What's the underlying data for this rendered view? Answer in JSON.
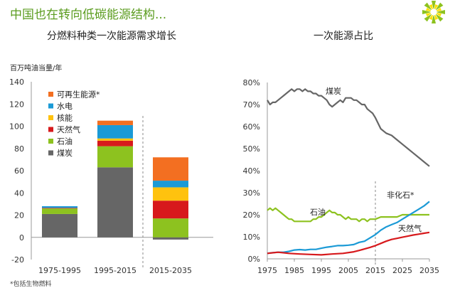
{
  "slide": {
    "title": "中国也在转向低碳能源结构...",
    "footnote": "*包括生物燃料",
    "accent_color": "#5b9c1f",
    "logo": "bp-helios-logo"
  },
  "chart_data": [
    {
      "type": "bar",
      "stacked": true,
      "title": "分燃料种类一次能源需求增长",
      "ylabel": "百万吨油当量/年",
      "ylim": [
        -20,
        140
      ],
      "yticks": [
        -20,
        0,
        20,
        40,
        60,
        80,
        100,
        120,
        140
      ],
      "categories": [
        "1975-1995",
        "1995-2015",
        "2015-2035"
      ],
      "legend_position": "top-right",
      "series": [
        {
          "name": "煤炭",
          "color": "#666666",
          "values": [
            21,
            63,
            -2
          ]
        },
        {
          "name": "石油",
          "color": "#8dc21f",
          "values": [
            5,
            19,
            17
          ]
        },
        {
          "name": "天然气",
          "color": "#d7191c",
          "values": [
            0.5,
            5,
            16
          ]
        },
        {
          "name": "核能",
          "color": "#ffc20e",
          "values": [
            0,
            2,
            12
          ]
        },
        {
          "name": "水电",
          "color": "#1b9ad6",
          "values": [
            1.5,
            12,
            6
          ]
        },
        {
          "name": "可再生能源*",
          "color": "#f36f21",
          "values": [
            0,
            4,
            21
          ]
        }
      ],
      "divider_between": [
        "1995-2015",
        "2015-2035"
      ]
    },
    {
      "type": "line",
      "title": "一次能源占比",
      "xlim": [
        1975,
        2035
      ],
      "xticks": [
        1975,
        1985,
        1995,
        2005,
        2015,
        2025,
        2035
      ],
      "ylim": [
        0,
        80
      ],
      "yticks": [
        "0%",
        "10%",
        "20%",
        "30%",
        "40%",
        "50%",
        "60%",
        "70%",
        "80%"
      ],
      "divider_at": 2015,
      "series": [
        {
          "name": "煤炭",
          "color": "#666666",
          "x": [
            1975,
            1976,
            1977,
            1978,
            1979,
            1980,
            1981,
            1982,
            1983,
            1984,
            1985,
            1986,
            1987,
            1988,
            1989,
            1990,
            1991,
            1992,
            1993,
            1994,
            1995,
            1996,
            1997,
            1998,
            1999,
            2000,
            2001,
            2002,
            2003,
            2004,
            2005,
            2006,
            2007,
            2008,
            2009,
            2010,
            2011,
            2012,
            2013,
            2014,
            2015,
            2017,
            2019,
            2021,
            2023,
            2025,
            2027,
            2029,
            2031,
            2033,
            2035
          ],
          "y": [
            72,
            70,
            71,
            71,
            72,
            73,
            74,
            75,
            76,
            77,
            76,
            77,
            77,
            76,
            77,
            76,
            76,
            75,
            75,
            74,
            74,
            73,
            72,
            70,
            69,
            70,
            71,
            72,
            71,
            73,
            73,
            73,
            72,
            72,
            71,
            70,
            70,
            68,
            67,
            66,
            64,
            59,
            57,
            56,
            54,
            52,
            50,
            48,
            46,
            44,
            42
          ]
        },
        {
          "name": "石油",
          "color": "#8dc21f",
          "x": [
            1975,
            1976,
            1977,
            1978,
            1979,
            1980,
            1981,
            1982,
            1983,
            1984,
            1985,
            1986,
            1987,
            1988,
            1989,
            1990,
            1991,
            1992,
            1993,
            1994,
            1995,
            1996,
            1997,
            1998,
            1999,
            2000,
            2001,
            2002,
            2003,
            2004,
            2005,
            2006,
            2007,
            2008,
            2009,
            2010,
            2011,
            2012,
            2013,
            2014,
            2015,
            2017,
            2019,
            2021,
            2023,
            2025,
            2027,
            2029,
            2031,
            2033,
            2035
          ],
          "y": [
            22,
            23,
            22,
            23,
            22,
            21,
            20,
            19,
            18,
            18,
            17,
            17,
            17,
            17,
            17,
            17,
            17,
            18,
            18,
            19,
            19,
            20,
            21,
            22,
            21,
            21,
            20,
            20,
            19,
            18,
            19,
            18,
            18,
            18,
            17,
            18,
            18,
            17,
            18,
            18,
            18,
            19,
            19,
            19,
            19,
            20,
            20,
            20,
            20,
            20,
            20
          ]
        },
        {
          "name": "非化石*",
          "color": "#1b9ad6",
          "x": [
            1975,
            1977,
            1979,
            1981,
            1983,
            1985,
            1987,
            1989,
            1991,
            1993,
            1995,
            1997,
            1999,
            2001,
            2003,
            2005,
            2007,
            2009,
            2011,
            2013,
            2015,
            2017,
            2019,
            2021,
            2023,
            2025,
            2027,
            2029,
            2031,
            2033,
            2035
          ],
          "y": [
            2.5,
            2.8,
            3,
            3,
            3.4,
            4,
            4.2,
            4,
            4.3,
            4.3,
            4.8,
            5.3,
            5.6,
            6,
            6,
            6.2,
            6.5,
            7.5,
            8,
            9.5,
            11,
            13,
            14.5,
            15.5,
            16.5,
            18,
            19.5,
            21,
            22.5,
            24,
            26
          ]
        },
        {
          "name": "天然气",
          "color": "#d7191c",
          "x": [
            1975,
            1979,
            1983,
            1987,
            1991,
            1995,
            1999,
            2003,
            2007,
            2009,
            2011,
            2013,
            2015,
            2017,
            2019,
            2021,
            2023,
            2025,
            2027,
            2029,
            2031,
            2033,
            2035
          ],
          "y": [
            2.5,
            3,
            2.5,
            2.2,
            2,
            1.8,
            2.2,
            2.5,
            3.2,
            3.8,
            4.5,
            5.2,
            6,
            7,
            8,
            8.8,
            9.3,
            9.8,
            10.3,
            10.8,
            11.2,
            11.6,
            12
          ]
        }
      ]
    }
  ]
}
